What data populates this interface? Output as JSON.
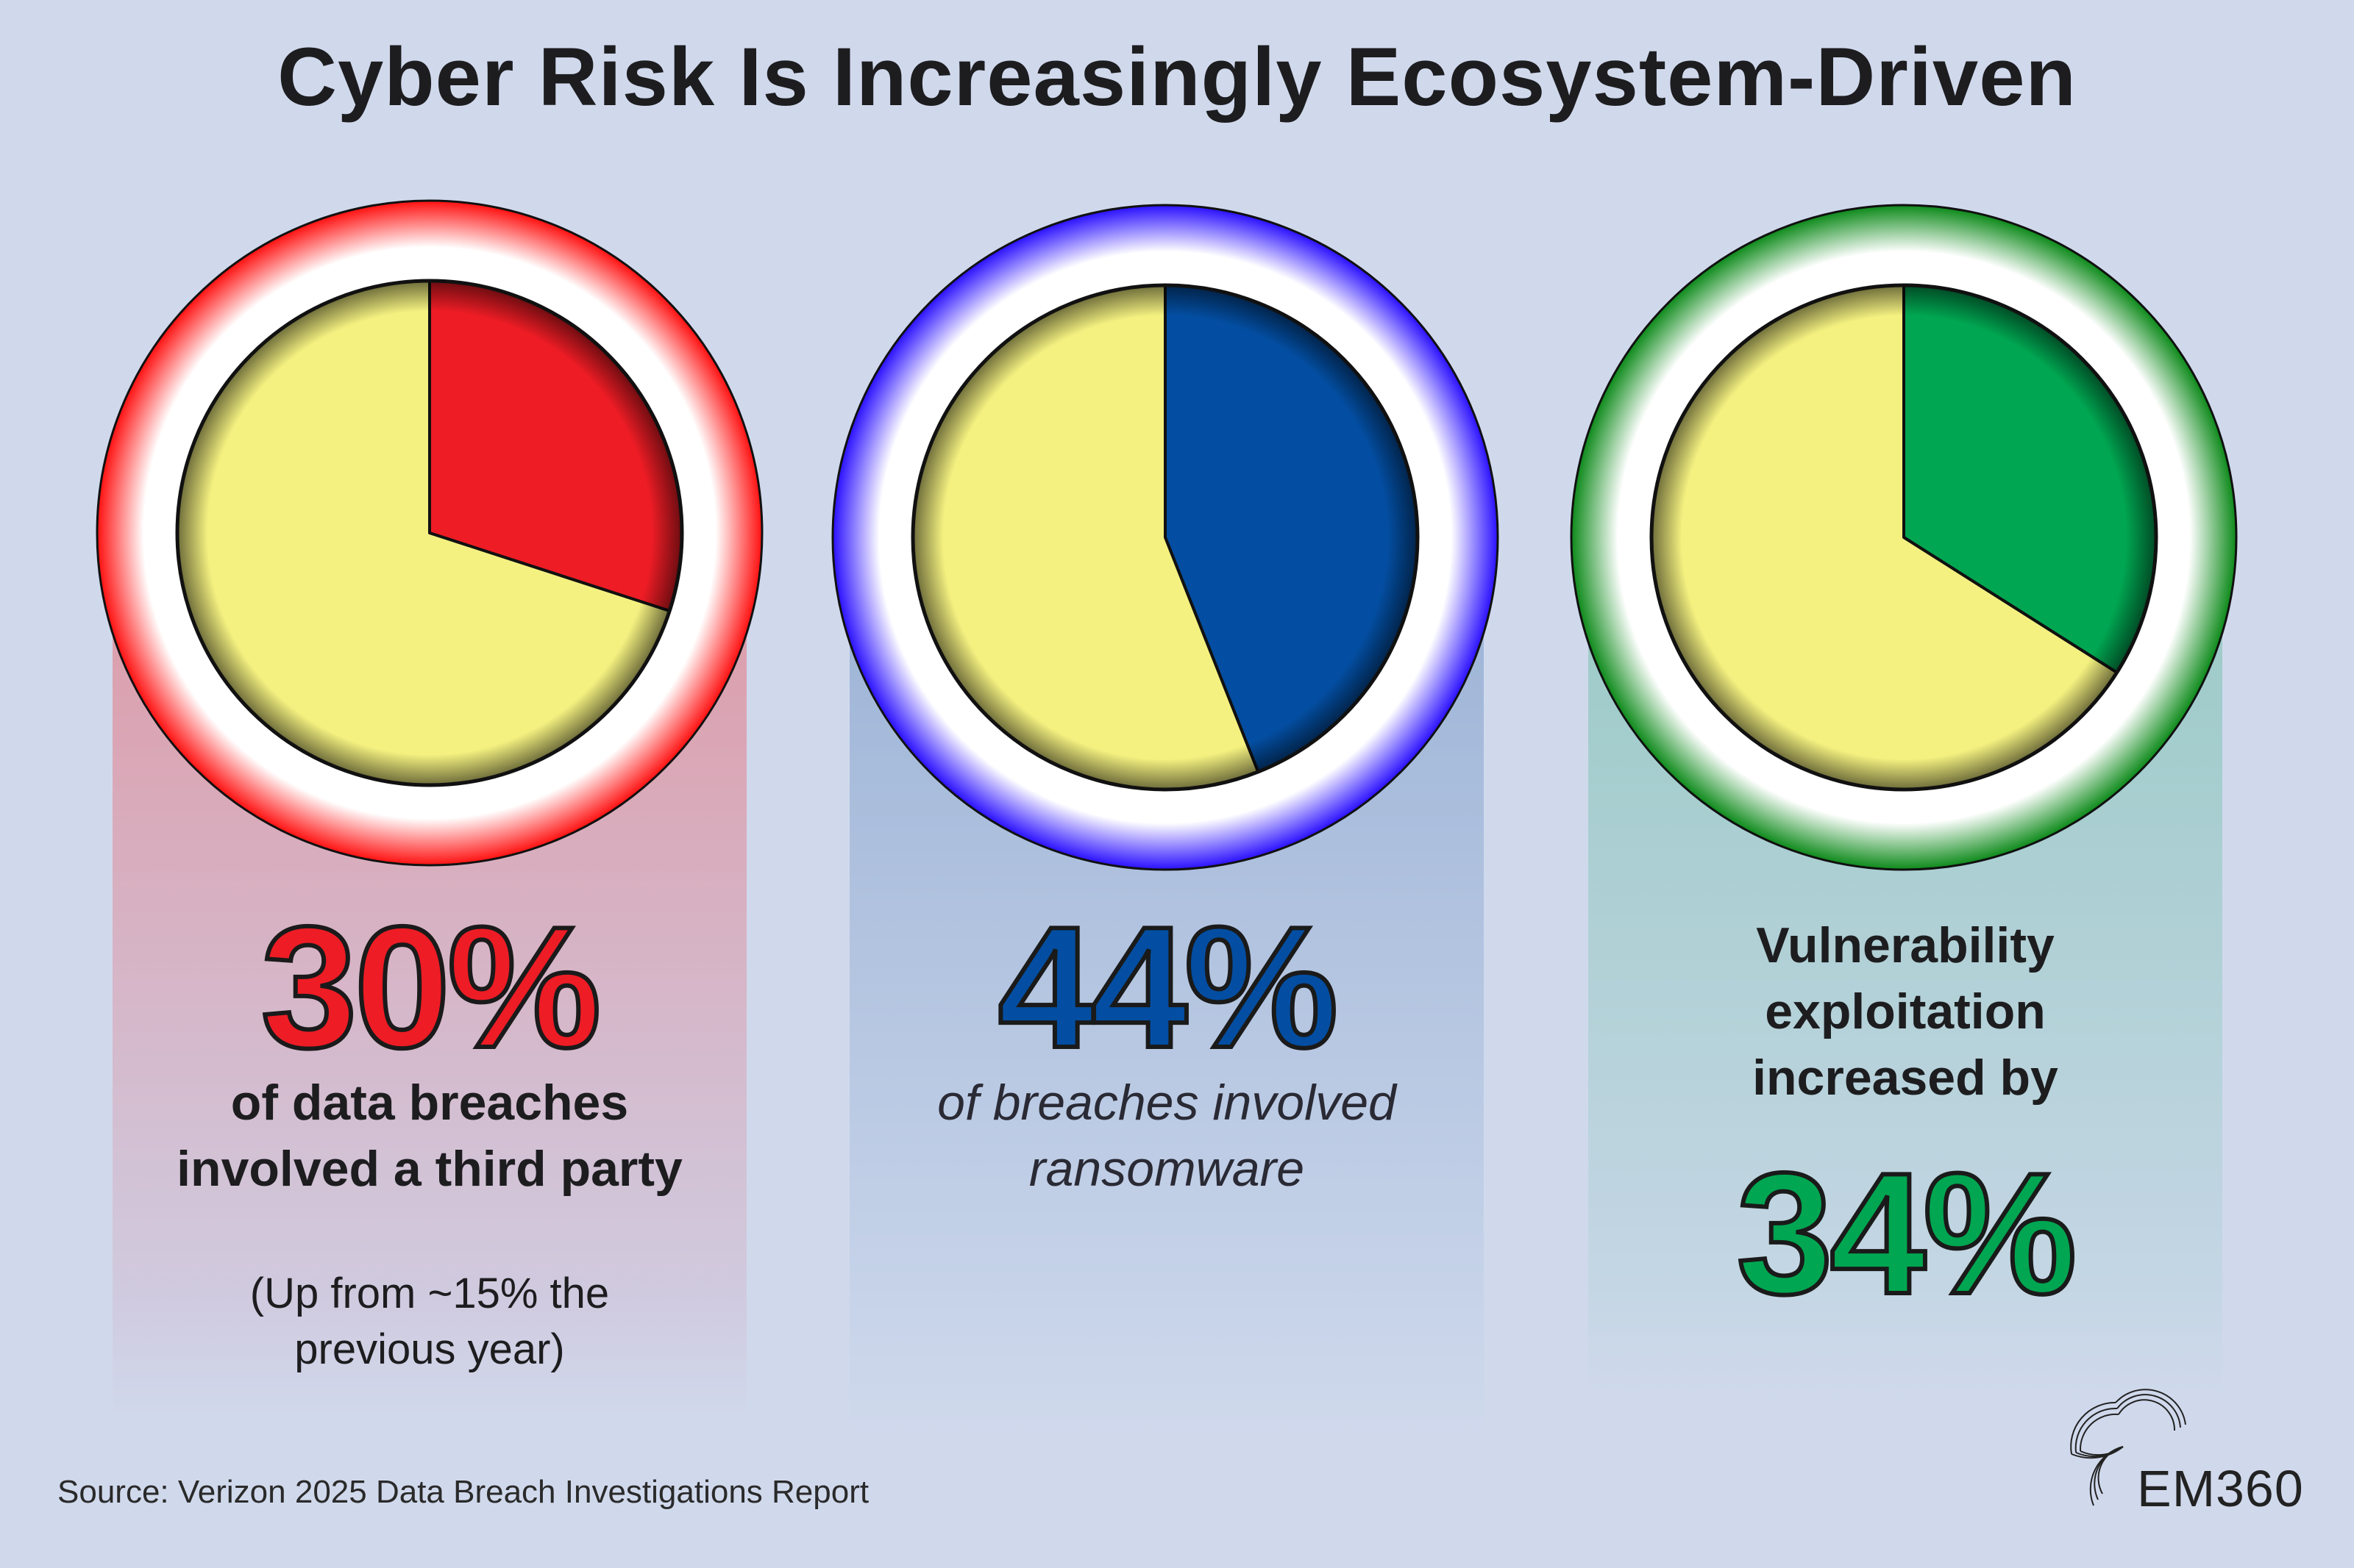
{
  "title": "Cyber Risk Is Increasingly Ecosystem-Driven",
  "colors": {
    "background": "#d0d9ec",
    "red": "#ee1c25",
    "blue": "#034ea2",
    "green": "#00a651",
    "remainder": "#f4f180"
  },
  "stats": [
    {
      "value": "30%",
      "lines": [
        "of data breaches",
        "involved a third party"
      ],
      "note_lines": [
        "(Up from ~15% the",
        "previous year)"
      ]
    },
    {
      "value": "44%",
      "lines": [
        "of breaches involved",
        "ransomware"
      ]
    },
    {
      "value": "34%",
      "lead_lines": [
        "Vulnerability",
        "exploitation",
        "increased by"
      ]
    }
  ],
  "chart_data": [
    {
      "type": "pie",
      "start": "top",
      "direction": "clockwise",
      "values": [
        30,
        70
      ],
      "colors": [
        "#ee1c25",
        "#f4f180"
      ],
      "ring_color": "#ff1010"
    },
    {
      "type": "pie",
      "start": "top",
      "direction": "clockwise",
      "values": [
        44,
        56
      ],
      "colors": [
        "#034ea2",
        "#f4f180"
      ],
      "ring_color": "#2a10ff"
    },
    {
      "type": "pie",
      "start": "top",
      "direction": "clockwise",
      "values": [
        34,
        66
      ],
      "colors": [
        "#00a651",
        "#f4f180"
      ],
      "ring_color": "#0d8a1a"
    }
  ],
  "source": "Source: Verizon 2025 Data Breach Investigations Report",
  "logo": "EM360"
}
